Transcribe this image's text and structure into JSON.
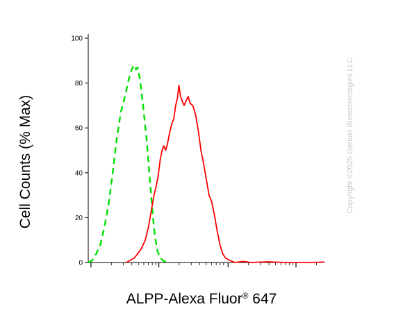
{
  "chart_data": {
    "type": "line",
    "xlabel_main": "ALPP-Alexa Fluor",
    "xlabel_sup": "®",
    "xlabel_tail": " 647",
    "ylabel": "Cell Counts (% Max)",
    "watermark": "Copyright ©2025 Genuin Biotechnologies LLC",
    "x_scale": "log",
    "ylim": [
      0,
      100
    ],
    "y_ticks": [
      0,
      20,
      40,
      60,
      80,
      100
    ],
    "grid": false,
    "series": [
      {
        "color": "#00e000",
        "style": "dashed",
        "points": [
          [
            0.9,
            0
          ],
          [
            1.05,
            1
          ],
          [
            1.2,
            4
          ],
          [
            1.35,
            8
          ],
          [
            1.5,
            16
          ],
          [
            1.65,
            26
          ],
          [
            1.8,
            40
          ],
          [
            1.95,
            55
          ],
          [
            2.1,
            67
          ],
          [
            2.25,
            74
          ],
          [
            2.4,
            82
          ],
          [
            2.5,
            86
          ],
          [
            2.58,
            88
          ],
          [
            2.66,
            86
          ],
          [
            2.72,
            87
          ],
          [
            2.8,
            82
          ],
          [
            2.92,
            70
          ],
          [
            3.05,
            55
          ],
          [
            3.15,
            40
          ],
          [
            3.25,
            25
          ],
          [
            3.35,
            12
          ],
          [
            3.45,
            5
          ],
          [
            3.55,
            2
          ],
          [
            3.7,
            0.5
          ],
          [
            3.85,
            0
          ]
        ]
      },
      {
        "color": "#ff0000",
        "style": "solid",
        "points": [
          [
            2.3,
            0
          ],
          [
            2.6,
            2
          ],
          [
            2.85,
            6
          ],
          [
            3.0,
            10
          ],
          [
            3.12,
            16
          ],
          [
            3.22,
            23
          ],
          [
            3.32,
            30
          ],
          [
            3.4,
            34
          ],
          [
            3.48,
            39
          ],
          [
            3.55,
            46
          ],
          [
            3.62,
            50
          ],
          [
            3.68,
            52
          ],
          [
            3.75,
            50
          ],
          [
            3.82,
            53
          ],
          [
            3.9,
            58
          ],
          [
            3.98,
            62
          ],
          [
            4.05,
            64
          ],
          [
            4.12,
            70
          ],
          [
            4.18,
            73
          ],
          [
            4.24,
            79
          ],
          [
            4.3,
            74
          ],
          [
            4.36,
            72
          ],
          [
            4.43,
            70
          ],
          [
            4.5,
            72
          ],
          [
            4.58,
            74
          ],
          [
            4.65,
            71
          ],
          [
            4.75,
            70
          ],
          [
            4.85,
            66
          ],
          [
            4.95,
            59
          ],
          [
            5.05,
            50
          ],
          [
            5.15,
            44
          ],
          [
            5.25,
            37
          ],
          [
            5.35,
            30
          ],
          [
            5.45,
            27
          ],
          [
            5.55,
            21
          ],
          [
            5.65,
            14
          ],
          [
            5.75,
            8
          ],
          [
            5.85,
            4
          ],
          [
            5.95,
            2
          ],
          [
            6.1,
            1
          ],
          [
            6.3,
            0
          ],
          [
            6.6,
            0.5
          ],
          [
            6.9,
            0
          ],
          [
            7.5,
            0.3
          ],
          [
            8.2,
            0
          ],
          [
            9.0,
            0
          ],
          [
            9.6,
            0.2
          ]
        ]
      }
    ]
  }
}
